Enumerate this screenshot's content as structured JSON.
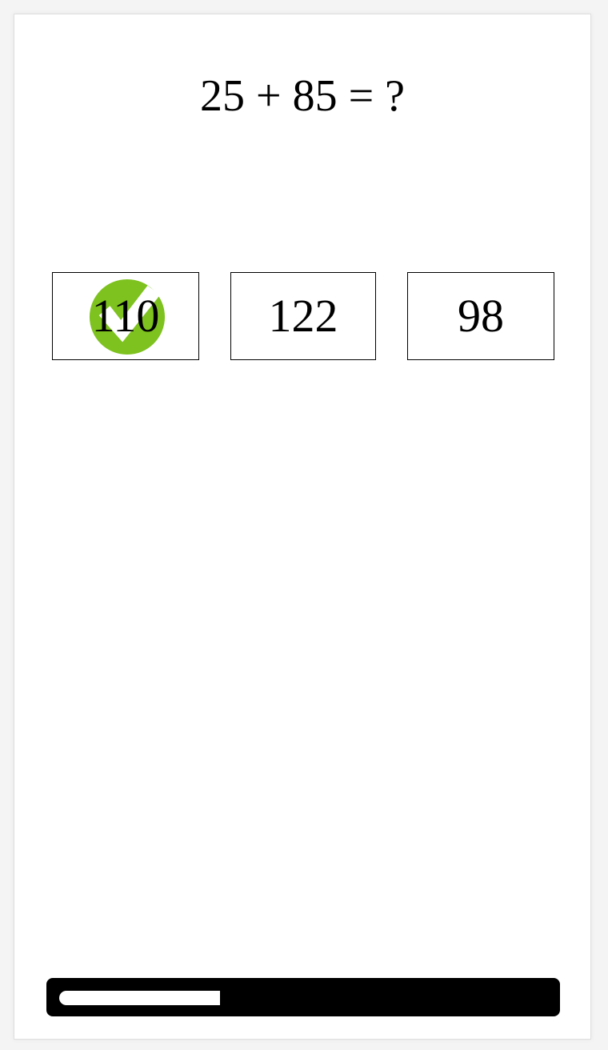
{
  "question": {
    "text": "25 + 85 = ?"
  },
  "answers": [
    {
      "label": "110",
      "state": "correct",
      "icon": "checkmark-icon"
    },
    {
      "label": "122",
      "state": "none"
    },
    {
      "label": "98",
      "state": "none"
    }
  ],
  "progress": {
    "fraction": 0.33
  },
  "colors": {
    "correct": "#7dc21e",
    "background": "#ffffff",
    "track": "#000000",
    "fill": "#ffffff"
  }
}
